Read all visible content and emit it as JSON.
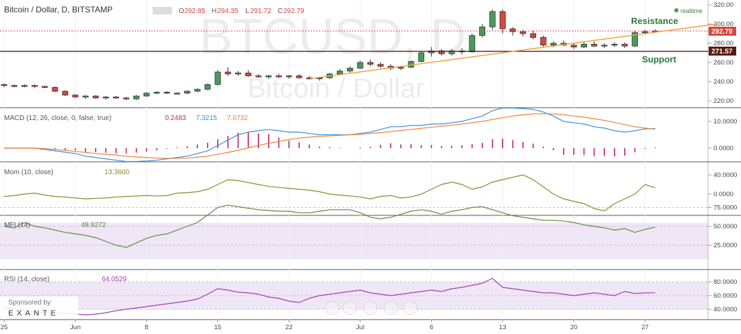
{
  "header": {
    "symbol": "Bitcoin / Dollar, D, BITSTAMP",
    "o_label": "O",
    "o": "292.85",
    "h_label": "H",
    "h": "294.35",
    "l_label": "L",
    "l": "291.72",
    "c_label": "C",
    "c": "292.79",
    "realtime": "realtime"
  },
  "watermark": {
    "ticker": "BTCUSD, D",
    "name": "Bitcoin / Dollar"
  },
  "annotations": {
    "resistance": "Resistance",
    "support": "Support"
  },
  "price_badges": {
    "current": "292.79",
    "support": "271.57"
  },
  "colors": {
    "up": "#4a9a5a",
    "down": "#d9463e",
    "trend": "#f0a040",
    "macd": "#3a8fd6",
    "signal": "#f08030",
    "hist": "#c0206a",
    "mom": "#8a8a2a",
    "mfi": "#5a8a3a",
    "rsi": "#a040b0",
    "band_bg": "#efe6f6"
  },
  "panels": {
    "macd": {
      "label": "MACD (12, 26, close, 0, false, true)",
      "v1": "0.2483",
      "v2": "7.3215",
      "v3": "7.0732",
      "ticks": [
        "10.0000",
        "0.0000"
      ]
    },
    "mom": {
      "label": "Mom (10, close)",
      "v1": "13.3600",
      "ticks": [
        "40.0000",
        "0.0000"
      ]
    },
    "mfi": {
      "label": "MFI (14)",
      "v1": "48.9272",
      "ticks": [
        "75.0000",
        "50.0000",
        "25.0000"
      ]
    },
    "rsi": {
      "label": "RSI (14, close)",
      "v1": "64.0529",
      "ticks": [
        "80.0000",
        "60.0000",
        "40.0000"
      ]
    }
  },
  "sponsor": {
    "label": "Sponsored by",
    "brand": "EXANTE"
  },
  "chart_data": {
    "type": "candlestick",
    "price_axis_ticks": [
      320,
      300,
      280,
      260,
      240,
      220
    ],
    "price_axis_labels": [
      "320.00",
      "300.00",
      "280.00",
      "260.00",
      "240.00",
      "220.00"
    ],
    "x_tick_labels": [
      "25",
      "Jun",
      "8",
      "15",
      "22",
      "Jul",
      "6",
      "13",
      "20",
      "27"
    ],
    "x_tick_index": [
      0,
      7,
      14,
      21,
      28,
      35,
      42,
      49,
      56,
      63
    ],
    "candles": [
      [
        237,
        238,
        234,
        236
      ],
      [
        236,
        237,
        234,
        235
      ],
      [
        235,
        237,
        234,
        236
      ],
      [
        236,
        237,
        233,
        235
      ],
      [
        235,
        236,
        233,
        234
      ],
      [
        234,
        235,
        229,
        230
      ],
      [
        230,
        231,
        225,
        226
      ],
      [
        226,
        227,
        223,
        224
      ],
      [
        224,
        226,
        222,
        225
      ],
      [
        225,
        226,
        222,
        223
      ],
      [
        223,
        225,
        221,
        224
      ],
      [
        224,
        225,
        222,
        223
      ],
      [
        223,
        224,
        221,
        222
      ],
      [
        222,
        226,
        221,
        225
      ],
      [
        225,
        229,
        224,
        228
      ],
      [
        228,
        230,
        227,
        229
      ],
      [
        229,
        230,
        227,
        228
      ],
      [
        228,
        229,
        227,
        228
      ],
      [
        228,
        231,
        227,
        230
      ],
      [
        230,
        233,
        229,
        232
      ],
      [
        232,
        238,
        231,
        237
      ],
      [
        237,
        252,
        236,
        250
      ],
      [
        250,
        255,
        246,
        248
      ],
      [
        248,
        251,
        246,
        249
      ],
      [
        249,
        252,
        245,
        246
      ],
      [
        246,
        248,
        244,
        245
      ],
      [
        245,
        247,
        243,
        246
      ],
      [
        246,
        248,
        244,
        245
      ],
      [
        245,
        247,
        243,
        246
      ],
      [
        246,
        248,
        243,
        244
      ],
      [
        244,
        246,
        242,
        243
      ],
      [
        243,
        245,
        241,
        244
      ],
      [
        244,
        249,
        243,
        248
      ],
      [
        248,
        253,
        247,
        251
      ],
      [
        251,
        256,
        249,
        254
      ],
      [
        254,
        262,
        253,
        260
      ],
      [
        260,
        263,
        256,
        258
      ],
      [
        258,
        260,
        254,
        256
      ],
      [
        256,
        258,
        252,
        254
      ],
      [
        254,
        256,
        252,
        255
      ],
      [
        255,
        262,
        254,
        261
      ],
      [
        261,
        272,
        260,
        270
      ],
      [
        270,
        276,
        266,
        272
      ],
      [
        272,
        274,
        267,
        269
      ],
      [
        269,
        274,
        267,
        272
      ],
      [
        272,
        275,
        268,
        271
      ],
      [
        271,
        290,
        270,
        288
      ],
      [
        288,
        300,
        286,
        297
      ],
      [
        297,
        315,
        294,
        313
      ],
      [
        313,
        315,
        290,
        295
      ],
      [
        295,
        297,
        288,
        292
      ],
      [
        292,
        294,
        287,
        290
      ],
      [
        290,
        293,
        284,
        286
      ],
      [
        286,
        288,
        276,
        278
      ],
      [
        278,
        282,
        276,
        280
      ],
      [
        280,
        283,
        277,
        278
      ],
      [
        278,
        280,
        274,
        276
      ],
      [
        276,
        281,
        275,
        279
      ],
      [
        279,
        282,
        276,
        277
      ],
      [
        277,
        280,
        275,
        278
      ],
      [
        278,
        281,
        276,
        279
      ],
      [
        279,
        281,
        275,
        277
      ],
      [
        277,
        293,
        276,
        291
      ],
      [
        291,
        294,
        289,
        292
      ],
      [
        292.85,
        294.35,
        291.72,
        292.79
      ]
    ],
    "support_level": 271.57,
    "resistance_level": 292.79,
    "trendline": {
      "from": [
        30,
        243
      ],
      "to": [
        70,
        300
      ]
    },
    "macd": {
      "macd": [
        0,
        0,
        0,
        0,
        -0.5,
        -1,
        -1.5,
        -2,
        -3,
        -3.5,
        -4,
        -4.5,
        -5,
        -5,
        -4.8,
        -4.5,
        -4,
        -3.5,
        -3,
        -2,
        -1,
        1,
        3,
        5,
        6,
        6.5,
        7,
        6.5,
        6,
        6,
        5.5,
        5,
        5,
        5,
        5,
        5.5,
        6,
        7,
        8,
        8,
        8.5,
        8.5,
        9,
        9,
        9.5,
        10,
        11,
        12,
        14,
        15,
        15,
        14.8,
        14.5,
        13.5,
        12,
        10,
        9.5,
        9,
        8,
        7.5,
        6.5,
        6,
        6.5,
        7.2,
        7.3
      ],
      "signal": [
        0,
        0,
        0,
        0,
        -0.2,
        -0.5,
        -0.8,
        -1.2,
        -1.6,
        -2,
        -2.3,
        -2.6,
        -3,
        -3.3,
        -3.5,
        -3.7,
        -3.8,
        -3.8,
        -3.7,
        -3.4,
        -3,
        -2.3,
        -1.6,
        -0.8,
        0.1,
        1,
        1.8,
        2.5,
        3.2,
        3.8,
        4.1,
        4.4,
        4.6,
        4.8,
        5,
        5.2,
        5.5,
        5.8,
        6.2,
        6.6,
        7,
        7.4,
        7.8,
        8.2,
        8.6,
        9,
        9.5,
        10,
        10.7,
        11.4,
        12,
        12.5,
        12.8,
        12.9,
        12.8,
        12.5,
        12,
        11.6,
        11,
        10.4,
        9.6,
        8.8,
        8,
        7.5,
        7.07
      ],
      "hist": [
        0,
        0,
        0,
        0,
        -0.3,
        -0.5,
        -0.7,
        -0.8,
        -1.4,
        -1.5,
        -1.7,
        -1.9,
        -2,
        -1.7,
        -1.3,
        -0.8,
        -0.2,
        0.3,
        0.7,
        1.4,
        2,
        3.3,
        4.6,
        5.8,
        5.9,
        5.5,
        5.2,
        4,
        2.8,
        2.2,
        1.4,
        0.6,
        0.4,
        0.2,
        0,
        0.3,
        0.5,
        1.2,
        1.8,
        1.4,
        1.5,
        1.1,
        1.2,
        0.8,
        0.9,
        1,
        1.5,
        2,
        3.3,
        3.6,
        3,
        2.3,
        1.7,
        0.6,
        -0.8,
        -2.5,
        -2.5,
        -2.6,
        -3,
        -2.9,
        -3.1,
        -2.8,
        -1.5,
        -0.3,
        0.25
      ]
    },
    "mom": [
      -5,
      -3,
      0,
      2,
      -2,
      -5,
      -6,
      -8,
      -10,
      -9,
      -8,
      -6,
      -5,
      -4,
      -3,
      -4,
      -3,
      2,
      3,
      5,
      10,
      20,
      30,
      28,
      24,
      20,
      16,
      14,
      12,
      10,
      8,
      5,
      0,
      -2,
      -4,
      -6,
      -10,
      -5,
      -3,
      -8,
      -6,
      0,
      10,
      20,
      25,
      20,
      10,
      15,
      25,
      30,
      35,
      40,
      30,
      15,
      0,
      -10,
      -15,
      -20,
      -30,
      -35,
      -20,
      -10,
      0,
      20,
      13.36
    ],
    "mfi": [
      50,
      48,
      55,
      50,
      48,
      45,
      42,
      40,
      38,
      35,
      30,
      25,
      22,
      28,
      34,
      38,
      40,
      45,
      50,
      55,
      65,
      75,
      78,
      76,
      74,
      72,
      71,
      70,
      70,
      68,
      68,
      70,
      72,
      72,
      72,
      68,
      62,
      60,
      62,
      66,
      70,
      72,
      70,
      66,
      70,
      72,
      75,
      76,
      72,
      68,
      64,
      62,
      60,
      58,
      58,
      57,
      55,
      52,
      50,
      48,
      45,
      47,
      42,
      46,
      48.93
    ],
    "rsi": [
      42,
      40,
      38,
      36,
      35,
      35,
      34,
      33,
      32,
      33,
      35,
      38,
      40,
      42,
      44,
      46,
      48,
      50,
      52,
      55,
      62,
      70,
      68,
      65,
      64,
      62,
      58,
      56,
      52,
      50,
      56,
      60,
      62,
      64,
      66,
      68,
      64,
      62,
      60,
      62,
      64,
      66,
      68,
      66,
      70,
      72,
      75,
      78,
      85,
      72,
      70,
      68,
      66,
      64,
      64,
      62,
      60,
      62,
      64,
      62,
      60,
      66,
      63,
      64,
      64.05
    ]
  }
}
